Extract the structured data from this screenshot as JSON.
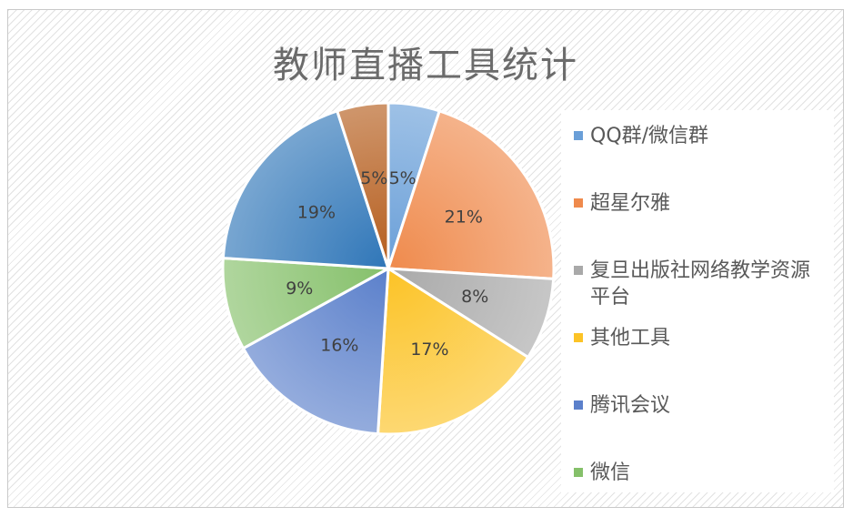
{
  "chart_data": {
    "type": "pie",
    "title": "教师直播工具统计",
    "categories": [
      "QQ群/微信群",
      "超星尔雅",
      "复旦出版社网络教学资源平台",
      "其他工具",
      "腾讯会议",
      "微信",
      "",
      ""
    ],
    "values": [
      5,
      21,
      8,
      17,
      16,
      9,
      19,
      5
    ],
    "data_labels": [
      "5%",
      "21%",
      "8%",
      "17%",
      "16%",
      "9%",
      "19%",
      "5%"
    ],
    "colors": [
      "#6a9fd8",
      "#ef8a4c",
      "#a9a9a9",
      "#fcc326",
      "#5b80cb",
      "#85c06a",
      "#2f76b8",
      "#b55d1d"
    ],
    "legend": {
      "position": "right",
      "entries": [
        "QQ群/微信群",
        "超星尔雅",
        "复旦出版社网络教学资源平台",
        "其他工具",
        "腾讯会议",
        "微信"
      ]
    }
  }
}
